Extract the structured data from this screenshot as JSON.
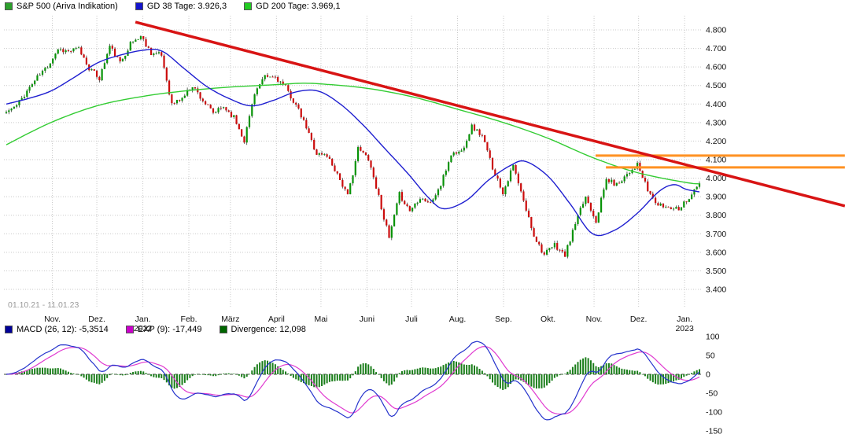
{
  "header": {
    "series_legend": [
      {
        "label": "S&P 500 (Ariva Indikation)",
        "color": "#2ca02c"
      },
      {
        "label": "GD 38 Tage: 3.926,3",
        "color": "#1414cc"
      },
      {
        "label": "GD 200 Tage: 3.969,1",
        "color": "#22cc22"
      }
    ]
  },
  "footer_legend": [
    {
      "label": "MACD (26, 12): -5,3514",
      "color": "#000099"
    },
    {
      "label": "EXP (9): -17,449",
      "color": "#cc00cc"
    },
    {
      "label": "Divergence: 12,098",
      "color": "#006600"
    }
  ],
  "date_range": "01.10.21 - 11.01.23",
  "chart_data": [
    {
      "type": "candlestick",
      "title": "S&P 500 (Ariva Indikation)",
      "date_range": "01.10.21 - 11.01.23",
      "y_axis": {
        "min": 3400,
        "max": 4800,
        "tick_step": 100,
        "ticks": [
          4800,
          4700,
          4600,
          4500,
          4400,
          4300,
          4200,
          4100,
          4000,
          3900,
          3800,
          3700,
          3600,
          3500,
          3400
        ]
      },
      "x_axis": {
        "total_days": 467,
        "months": [
          {
            "d": 31,
            "label": "Nov."
          },
          {
            "d": 61,
            "label": "Dez."
          },
          {
            "d": 92,
            "label": "Jan.",
            "sub": "2022"
          },
          {
            "d": 123,
            "label": "Feb."
          },
          {
            "d": 151,
            "label": "März"
          },
          {
            "d": 182,
            "label": "April"
          },
          {
            "d": 212,
            "label": "Mai"
          },
          {
            "d": 243,
            "label": "Juni"
          },
          {
            "d": 273,
            "label": "Juli"
          },
          {
            "d": 304,
            "label": "Aug."
          },
          {
            "d": 335,
            "label": "Sep."
          },
          {
            "d": 365,
            "label": "Okt."
          },
          {
            "d": 396,
            "label": "Nov."
          },
          {
            "d": 426,
            "label": "Dez."
          },
          {
            "d": 457,
            "label": "Jan.",
            "sub": "2023"
          }
        ]
      },
      "weekly_closes": [
        4357,
        4391,
        4471,
        4545,
        4605,
        4698,
        4683,
        4698,
        4595,
        4538,
        4712,
        4621,
        4726,
        4766,
        4677,
        4663,
        4398,
        4432,
        4501,
        4419,
        4349,
        4385,
        4329,
        4204,
        4463,
        4543,
        4546,
        4488,
        4393,
        4272,
        4132,
        4123,
        4024,
        3901,
        4158,
        4109,
        3901,
        3675,
        3912,
        3825,
        3899,
        3863,
        3962,
        4130,
        4145,
        4280,
        4228,
        4058,
        3924,
        4067,
        3873,
        3693,
        3586,
        3640,
        3583,
        3753,
        3901,
        3771,
        3993,
        3965,
        4026,
        4072,
        3934,
        3852,
        3845,
        3840,
        3895,
        3969
      ],
      "candle_colors": {
        "up": "#079307",
        "down": "#cb0c0c",
        "wick": "#222222"
      },
      "gd38": {
        "label": "GD 38 Tage",
        "last_value": 3926.3,
        "color": "#1f1fd0",
        "anchors": [
          [
            0,
            4400
          ],
          [
            15,
            4430
          ],
          [
            30,
            4470
          ],
          [
            45,
            4540
          ],
          [
            61,
            4620
          ],
          [
            75,
            4660
          ],
          [
            92,
            4690
          ],
          [
            105,
            4685
          ],
          [
            120,
            4590
          ],
          [
            135,
            4495
          ],
          [
            150,
            4430
          ],
          [
            165,
            4390
          ],
          [
            180,
            4420
          ],
          [
            195,
            4465
          ],
          [
            210,
            4470
          ],
          [
            225,
            4400
          ],
          [
            240,
            4290
          ],
          [
            255,
            4160
          ],
          [
            270,
            4030
          ],
          [
            285,
            3890
          ],
          [
            295,
            3835
          ],
          [
            310,
            3880
          ],
          [
            325,
            3990
          ],
          [
            340,
            4070
          ],
          [
            350,
            4090
          ],
          [
            365,
            4010
          ],
          [
            380,
            3860
          ],
          [
            395,
            3700
          ],
          [
            410,
            3720
          ],
          [
            425,
            3810
          ],
          [
            440,
            3930
          ],
          [
            450,
            3965
          ],
          [
            458,
            3940
          ],
          [
            467,
            3926
          ]
        ]
      },
      "gd200": {
        "label": "GD 200 Tage",
        "last_value": 3969.1,
        "color": "#33cc33",
        "anchors": [
          [
            0,
            4180
          ],
          [
            30,
            4300
          ],
          [
            61,
            4390
          ],
          [
            91,
            4440
          ],
          [
            122,
            4472
          ],
          [
            152,
            4492
          ],
          [
            183,
            4505
          ],
          [
            198,
            4512
          ],
          [
            213,
            4508
          ],
          [
            243,
            4485
          ],
          [
            274,
            4438
          ],
          [
            304,
            4372
          ],
          [
            335,
            4300
          ],
          [
            365,
            4215
          ],
          [
            396,
            4108
          ],
          [
            426,
            4028
          ],
          [
            457,
            3978
          ],
          [
            467,
            3969
          ]
        ]
      },
      "annotations": {
        "trendline": {
          "color": "#d81414",
          "width": 3.5,
          "points": [
            [
              87,
              4842
            ],
            [
              565,
              3850
            ]
          ]
        },
        "resistance_lines": [
          {
            "price": 4122,
            "from_day": 397,
            "to_day": 565,
            "color": "#ff9122",
            "width": 3
          },
          {
            "price": 4058,
            "from_day": 404,
            "to_day": 565,
            "color": "#ff9122",
            "width": 3
          }
        ]
      }
    },
    {
      "type": "macd",
      "params": {
        "macd": "26, 12",
        "exp": "9"
      },
      "last_values": {
        "macd": -5.3514,
        "exp": -17.449,
        "divergence": 12.098
      },
      "derived_from": "weekly_closes of chart 0 (interpolated to daily)",
      "colors": {
        "macd_line": "#2533cc",
        "exp_line": "#e03ad0",
        "histogram": "#1b7e1b"
      },
      "y_ticks": [
        100,
        50,
        0,
        -50,
        -100,
        -150
      ]
    }
  ]
}
